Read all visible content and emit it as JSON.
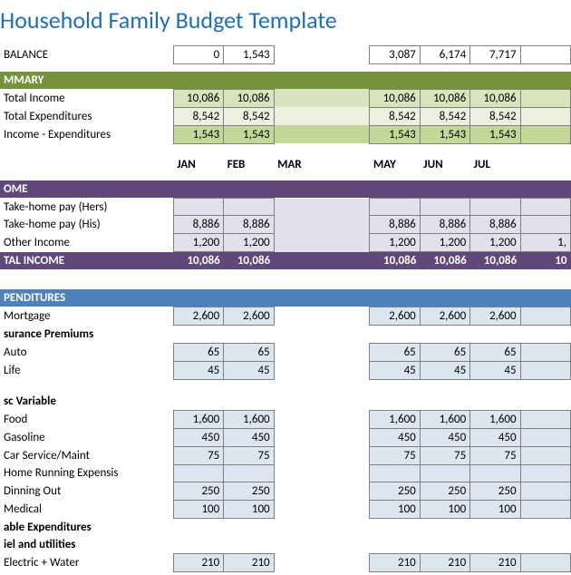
{
  "title": "Household Family Budget Template",
  "months": [
    "JAN",
    "FEB",
    "MAR",
    "",
    "MAY",
    "JUN",
    "JUL"
  ],
  "balance": {
    "label": "BALANCE",
    "values": [
      "0",
      "1,543",
      "",
      "3,087",
      "6,174",
      "7,717",
      ""
    ]
  },
  "summary": {
    "header": "MMARY",
    "rows": [
      {
        "label": "Total Income",
        "values": [
          "10,086",
          "10,086",
          "",
          "10,086",
          "10,086",
          "10,086",
          ""
        ]
      },
      {
        "label": "Total Expenditures",
        "values": [
          "8,542",
          "8,542",
          "",
          "8,542",
          "8,542",
          "8,542",
          ""
        ]
      },
      {
        "label": "Income - Expenditures",
        "values": [
          "1,543",
          "1,543",
          "",
          "1,543",
          "1,543",
          "1,543",
          ""
        ]
      }
    ]
  },
  "income": {
    "header": "OME",
    "rows": [
      {
        "label": "Take-home pay (Hers)",
        "values": [
          "",
          "",
          "",
          "",
          "",
          "",
          ""
        ]
      },
      {
        "label": "Take-home pay (His)",
        "values": [
          "8,886",
          "8,886",
          "",
          "8,886",
          "8,886",
          "8,886",
          ""
        ]
      },
      {
        "label": "Other Income",
        "values": [
          "1,200",
          "1,200",
          "",
          "1,200",
          "1,200",
          "1,200",
          "1,"
        ]
      }
    ],
    "total": {
      "label": "TAL INCOME",
      "values": [
        "10,086",
        "10,086",
        "",
        "10,086",
        "10,086",
        "10,086",
        "10"
      ]
    }
  },
  "expenditures": {
    "header": "PENDITURES",
    "mortgage": {
      "label": "Mortgage",
      "values": [
        "2,600",
        "2,600",
        "",
        "2,600",
        "2,600",
        "2,600",
        ""
      ]
    },
    "insurance_header": "surance Premiums",
    "insurance": [
      {
        "label": "Auto",
        "values": [
          "65",
          "65",
          "",
          "65",
          "65",
          "65",
          ""
        ]
      },
      {
        "label": "Life",
        "values": [
          "45",
          "45",
          "",
          "45",
          "45",
          "45",
          ""
        ]
      }
    ],
    "misc_header": "sc Variable",
    "misc": [
      {
        "label": "Food",
        "values": [
          "1,600",
          "1,600",
          "",
          "1,600",
          "1,600",
          "1,600",
          ""
        ]
      },
      {
        "label": "Gasoline",
        "values": [
          "450",
          "450",
          "",
          "450",
          "450",
          "450",
          ""
        ]
      },
      {
        "label": "Car Service/Maint",
        "values": [
          "75",
          "75",
          "",
          "75",
          "75",
          "75",
          ""
        ]
      },
      {
        "label": "Home Running Expensis",
        "values": [
          "",
          "",
          "",
          "",
          "",
          "",
          ""
        ]
      },
      {
        "label": "Dinning Out",
        "values": [
          "250",
          "250",
          "",
          "250",
          "250",
          "250",
          ""
        ]
      },
      {
        "label": "Medical",
        "values": [
          "100",
          "100",
          "",
          "100",
          "100",
          "100",
          ""
        ]
      }
    ],
    "variable_header": "able Expenditures",
    "fuel_header": "iel and utilities",
    "fuel": [
      {
        "label": "Electric + Water",
        "values": [
          "210",
          "210",
          "",
          "210",
          "210",
          "210",
          ""
        ]
      }
    ]
  }
}
